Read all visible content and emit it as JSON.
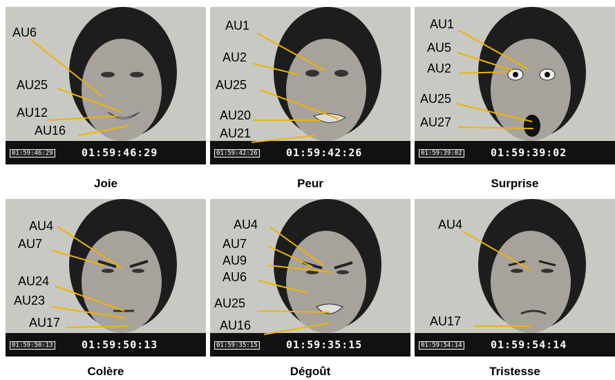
{
  "panels": [
    {
      "caption": "Joie",
      "timecode": "01:59:46:29",
      "tcbox": "01:59:46:29",
      "labels": [
        "AU6",
        "AU25",
        "AU12",
        "AU16"
      ]
    },
    {
      "caption": "Peur",
      "timecode": "01:59:42:26",
      "tcbox": "01:59:42:26",
      "labels": [
        "AU1",
        "AU2",
        "AU25",
        "AU20",
        "AU21"
      ]
    },
    {
      "caption": "Surprise",
      "timecode": "01:59:39:02",
      "tcbox": "01:59:39:02",
      "labels": [
        "AU1",
        "AU5",
        "AU2",
        "AU25",
        "AU27"
      ]
    },
    {
      "caption": "Colère",
      "timecode": "01:59:50:13",
      "tcbox": "01:59:50:13",
      "labels": [
        "AU4",
        "AU7",
        "AU24",
        "AU23",
        "AU17"
      ]
    },
    {
      "caption": "Dégoût",
      "timecode": "01:59:35:15",
      "tcbox": "01:59:35:15",
      "labels": [
        "AU4",
        "AU7",
        "AU9",
        "AU6",
        "AU25",
        "AU16"
      ]
    },
    {
      "caption": "Tristesse",
      "timecode": "01:59:54:14",
      "tcbox": "01:59:54:14",
      "labels": [
        "AU4",
        "AU17"
      ]
    }
  ],
  "colors": {
    "leader": "#f0b400",
    "label": "#000000"
  }
}
